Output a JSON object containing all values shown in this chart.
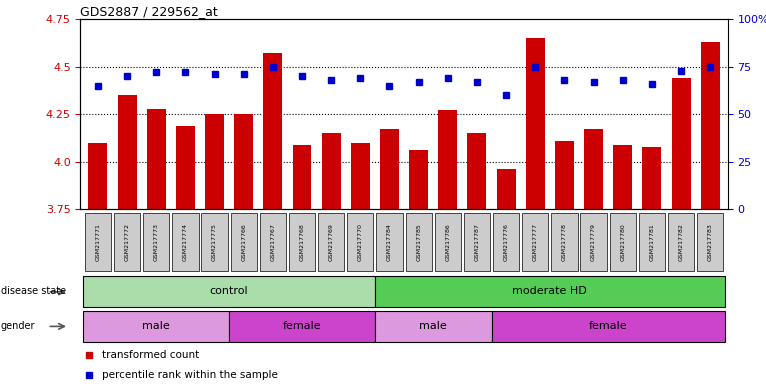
{
  "title": "GDS2887 / 229562_at",
  "samples": [
    "GSM217771",
    "GSM217772",
    "GSM217773",
    "GSM217774",
    "GSM217775",
    "GSM217766",
    "GSM217767",
    "GSM217768",
    "GSM217769",
    "GSM217770",
    "GSM217784",
    "GSM217785",
    "GSM217786",
    "GSM217787",
    "GSM217776",
    "GSM217777",
    "GSM217778",
    "GSM217779",
    "GSM217780",
    "GSM217781",
    "GSM217782",
    "GSM217783"
  ],
  "bar_values": [
    4.1,
    4.35,
    4.28,
    4.19,
    4.25,
    4.25,
    4.57,
    4.09,
    4.15,
    4.1,
    4.17,
    4.06,
    4.27,
    4.15,
    3.96,
    4.65,
    4.11,
    4.17,
    4.09,
    4.08,
    4.44,
    4.63
  ],
  "percentile_values": [
    65,
    70,
    72,
    72,
    71,
    71,
    75,
    70,
    68,
    69,
    65,
    67,
    69,
    67,
    60,
    75,
    68,
    67,
    68,
    66,
    73,
    75
  ],
  "ylim_left": [
    3.75,
    4.75
  ],
  "ylim_right": [
    0,
    100
  ],
  "yticks_left": [
    3.75,
    4.0,
    4.25,
    4.5,
    4.75
  ],
  "yticks_right": [
    0,
    25,
    50,
    75,
    100
  ],
  "ytick_labels_right": [
    "0",
    "25",
    "50",
    "75",
    "100%"
  ],
  "bar_color": "#cc0000",
  "dot_color": "#0000cc",
  "disease_state_groups": [
    {
      "label": "control",
      "start": 0,
      "end": 9,
      "color": "#aaddaa"
    },
    {
      "label": "moderate HD",
      "start": 10,
      "end": 21,
      "color": "#55cc55"
    }
  ],
  "gender_groups": [
    {
      "label": "male",
      "start": 0,
      "end": 4,
      "color": "#dd99dd"
    },
    {
      "label": "female",
      "start": 5,
      "end": 9,
      "color": "#cc44cc"
    },
    {
      "label": "male",
      "start": 10,
      "end": 13,
      "color": "#dd99dd"
    },
    {
      "label": "female",
      "start": 14,
      "end": 21,
      "color": "#cc44cc"
    }
  ],
  "legend_labels": [
    "transformed count",
    "percentile rank within the sample"
  ],
  "legend_colors": [
    "#cc0000",
    "#0000cc"
  ],
  "background_color": "#ffffff",
  "tick_label_color_left": "#cc0000",
  "tick_label_color_right": "#0000cc",
  "sample_box_color": "#cccccc",
  "n_samples": 22
}
